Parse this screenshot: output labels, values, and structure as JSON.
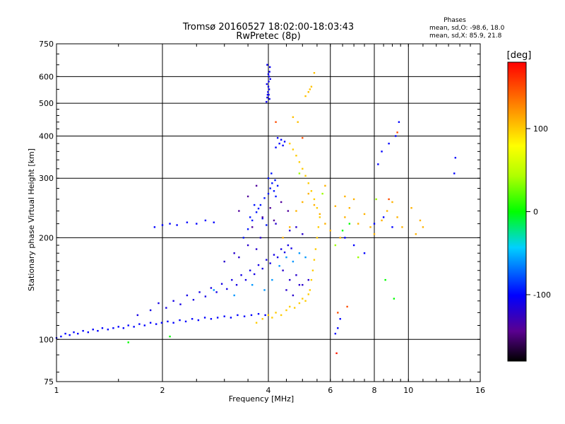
{
  "chart_data": {
    "type": "scatter",
    "title": "Tromsø 20160527 18:02:00-18:03:43",
    "subtitle": "RwPretec (8p)",
    "xlabel": "Frequency [MHz]",
    "ylabel": "Stationary phase Virtual Height [km]",
    "x_scale": "log",
    "y_scale": "log",
    "xlim": [
      1,
      16
    ],
    "ylim": [
      75,
      750
    ],
    "x_ticks": [
      1,
      2,
      4,
      6,
      8,
      10,
      16
    ],
    "x_tick_labels": [
      "1",
      "2",
      "4",
      "6",
      "8",
      "10",
      "16"
    ],
    "y_ticks": [
      75,
      100,
      200,
      300,
      400,
      500,
      600,
      750
    ],
    "y_tick_labels": [
      "75",
      "100",
      "200",
      "300",
      "400",
      "500",
      "600",
      "750"
    ],
    "grid": true,
    "stats": {
      "header": "Phases",
      "line_o": "mean, sd,O: -98.6, 18.0",
      "line_x": "mean, sd,X:  85.9, 21.8"
    },
    "colorbar": {
      "label": "[deg]",
      "range": [
        -180,
        180
      ],
      "ticks": [
        100,
        0,
        -100
      ],
      "tick_labels": [
        "100",
        "0",
        "-100"
      ]
    },
    "point_groups": [
      {
        "phase": -100,
        "points": [
          [
            1.0,
            101
          ],
          [
            1.03,
            102
          ],
          [
            1.06,
            104
          ],
          [
            1.09,
            103
          ],
          [
            1.12,
            105
          ],
          [
            1.15,
            104
          ],
          [
            1.19,
            106
          ],
          [
            1.23,
            105
          ],
          [
            1.27,
            107
          ],
          [
            1.31,
            106
          ],
          [
            1.35,
            108
          ],
          [
            1.4,
            107
          ],
          [
            1.45,
            108
          ],
          [
            1.5,
            109
          ],
          [
            1.55,
            108
          ],
          [
            1.6,
            110
          ],
          [
            1.66,
            109
          ],
          [
            1.72,
            111
          ],
          [
            1.78,
            110
          ],
          [
            1.85,
            112
          ],
          [
            1.92,
            111
          ],
          [
            1.99,
            112
          ],
          [
            2.07,
            113
          ],
          [
            2.15,
            112
          ],
          [
            2.24,
            114
          ],
          [
            2.33,
            113
          ],
          [
            2.43,
            115
          ],
          [
            2.53,
            114
          ],
          [
            2.64,
            116
          ],
          [
            2.75,
            115
          ],
          [
            2.87,
            116
          ],
          [
            3.0,
            117
          ],
          [
            3.13,
            116
          ],
          [
            3.27,
            118
          ],
          [
            3.42,
            117
          ],
          [
            3.58,
            118
          ],
          [
            3.75,
            119
          ],
          [
            3.92,
            118
          ]
        ]
      },
      {
        "phase": -110,
        "points": [
          [
            1.7,
            118
          ],
          [
            1.85,
            122
          ],
          [
            1.95,
            128
          ],
          [
            2.05,
            124
          ],
          [
            2.15,
            130
          ],
          [
            2.25,
            127
          ],
          [
            2.35,
            135
          ],
          [
            2.45,
            131
          ],
          [
            2.55,
            138
          ],
          [
            2.65,
            134
          ],
          [
            2.75,
            142
          ],
          [
            2.85,
            138
          ],
          [
            2.95,
            146
          ],
          [
            3.05,
            141
          ],
          [
            3.15,
            150
          ],
          [
            3.25,
            145
          ],
          [
            3.35,
            155
          ],
          [
            3.45,
            150
          ],
          [
            3.55,
            160
          ],
          [
            3.65,
            156
          ],
          [
            3.75,
            166
          ],
          [
            3.85,
            162
          ],
          [
            3.95,
            172
          ],
          [
            4.05,
            168
          ],
          [
            4.15,
            178
          ],
          [
            4.25,
            175
          ],
          [
            4.35,
            185
          ],
          [
            4.45,
            181
          ],
          [
            4.55,
            190
          ],
          [
            4.65,
            186
          ]
        ]
      },
      {
        "phase": -95,
        "points": [
          [
            3.4,
            200
          ],
          [
            3.5,
            212
          ],
          [
            3.6,
            225
          ],
          [
            3.7,
            238
          ],
          [
            3.8,
            250
          ],
          [
            3.9,
            262
          ],
          [
            4.0,
            270
          ],
          [
            4.05,
            280
          ],
          [
            4.1,
            290
          ],
          [
            4.15,
            275
          ],
          [
            4.2,
            265
          ],
          [
            4.25,
            285
          ],
          [
            4.0,
            300
          ],
          [
            4.08,
            310
          ],
          [
            4.18,
            296
          ],
          [
            3.55,
            230
          ],
          [
            3.65,
            250
          ],
          [
            3.75,
            244
          ],
          [
            3.85,
            228
          ],
          [
            3.95,
            218
          ]
        ]
      },
      {
        "phase": -105,
        "points": [
          [
            3.95,
            505
          ],
          [
            3.97,
            520
          ],
          [
            3.99,
            540
          ],
          [
            4.0,
            560
          ],
          [
            4.01,
            580
          ],
          [
            4.02,
            600
          ],
          [
            4.03,
            620
          ],
          [
            4.04,
            640
          ],
          [
            3.98,
            530
          ],
          [
            4.02,
            550
          ],
          [
            3.96,
            570
          ],
          [
            4.05,
            590
          ],
          [
            4.0,
            610
          ],
          [
            3.97,
            650
          ],
          [
            4.03,
            515
          ],
          [
            4.01,
            530
          ]
        ]
      },
      {
        "phase": -100,
        "points": [
          [
            4.2,
            370
          ],
          [
            4.3,
            380
          ],
          [
            4.35,
            390
          ],
          [
            4.4,
            375
          ],
          [
            4.25,
            395
          ],
          [
            4.45,
            385
          ]
        ]
      },
      {
        "phase": -100,
        "points": [
          [
            1.9,
            215
          ],
          [
            2.0,
            218
          ],
          [
            2.1,
            220
          ],
          [
            2.2,
            218
          ],
          [
            2.35,
            222
          ],
          [
            2.5,
            220
          ],
          [
            2.65,
            225
          ],
          [
            2.8,
            222
          ]
        ]
      },
      {
        "phase": -120,
        "points": [
          [
            3.0,
            170
          ],
          [
            3.2,
            180
          ],
          [
            3.3,
            175
          ],
          [
            3.5,
            190
          ],
          [
            3.7,
            185
          ],
          [
            3.8,
            200
          ],
          [
            4.2,
            220
          ],
          [
            4.6,
            210
          ],
          [
            4.8,
            215
          ],
          [
            5.0,
            205
          ],
          [
            4.4,
            160
          ],
          [
            4.6,
            150
          ],
          [
            4.8,
            155
          ],
          [
            5.0,
            145
          ],
          [
            5.2,
            150
          ],
          [
            4.5,
            140
          ],
          [
            4.7,
            135
          ],
          [
            4.9,
            145
          ]
        ]
      },
      {
        "phase": 100,
        "points": [
          [
            3.7,
            112
          ],
          [
            3.85,
            115
          ],
          [
            4.0,
            118
          ],
          [
            4.1,
            116
          ],
          [
            4.2,
            120
          ],
          [
            4.35,
            118
          ],
          [
            4.5,
            122
          ],
          [
            4.6,
            125
          ],
          [
            4.75,
            124
          ],
          [
            4.9,
            128
          ],
          [
            5.0,
            132
          ],
          [
            5.1,
            130
          ],
          [
            5.2,
            136
          ],
          [
            5.25,
            140
          ],
          [
            5.3,
            150
          ],
          [
            5.35,
            160
          ],
          [
            5.4,
            172
          ],
          [
            5.45,
            185
          ],
          [
            5.5,
            200
          ],
          [
            5.55,
            215
          ],
          [
            5.6,
            230
          ],
          [
            5.5,
            245
          ],
          [
            5.4,
            260
          ],
          [
            5.3,
            275
          ],
          [
            5.2,
            290
          ],
          [
            5.1,
            305
          ],
          [
            5.0,
            320
          ],
          [
            4.9,
            335
          ],
          [
            4.8,
            350
          ],
          [
            4.7,
            365
          ],
          [
            4.6,
            380
          ]
        ]
      },
      {
        "phase": 105,
        "points": [
          [
            5.2,
            540
          ],
          [
            5.25,
            550
          ],
          [
            5.3,
            560
          ],
          [
            5.1,
            525
          ],
          [
            5.4,
            615
          ],
          [
            4.85,
            440
          ],
          [
            4.7,
            455
          ]
        ]
      },
      {
        "phase": 110,
        "points": [
          [
            4.4,
            200
          ],
          [
            4.6,
            215
          ],
          [
            4.8,
            240
          ],
          [
            5.0,
            255
          ],
          [
            5.2,
            270
          ],
          [
            5.4,
            250
          ],
          [
            5.6,
            235
          ],
          [
            5.8,
            220
          ],
          [
            6.0,
            210
          ],
          [
            6.4,
            200
          ],
          [
            6.6,
            230
          ],
          [
            6.8,
            245
          ],
          [
            7.0,
            260
          ],
          [
            7.2,
            220
          ],
          [
            7.5,
            235
          ],
          [
            7.8,
            215
          ],
          [
            8.0,
            205
          ],
          [
            8.4,
            225
          ],
          [
            8.7,
            240
          ],
          [
            9.0,
            255
          ],
          [
            9.3,
            230
          ],
          [
            9.6,
            215
          ],
          [
            10.2,
            245
          ],
          [
            10.5,
            205
          ],
          [
            10.8,
            225
          ],
          [
            11.0,
            215
          ],
          [
            6.2,
            248
          ],
          [
            6.6,
            265
          ],
          [
            5.8,
            285
          ]
        ]
      },
      {
        "phase": 0,
        "points": [
          [
            1.6,
            98
          ],
          [
            2.1,
            102
          ],
          [
            8.6,
            150
          ],
          [
            9.1,
            132
          ],
          [
            6.5,
            210
          ],
          [
            6.8,
            220
          ]
        ]
      },
      {
        "phase": 40,
        "points": [
          [
            4.9,
            310
          ],
          [
            5.7,
            270
          ],
          [
            6.2,
            190
          ],
          [
            7.2,
            175
          ],
          [
            8.1,
            260
          ]
        ]
      },
      {
        "phase": -60,
        "points": [
          [
            4.1,
            150
          ],
          [
            4.3,
            165
          ],
          [
            4.5,
            175
          ],
          [
            4.7,
            170
          ],
          [
            4.9,
            180
          ],
          [
            5.1,
            175
          ],
          [
            3.9,
            140
          ],
          [
            3.6,
            145
          ],
          [
            3.2,
            135
          ],
          [
            2.8,
            140
          ]
        ]
      },
      {
        "phase": 150,
        "points": [
          [
            6.3,
            120
          ],
          [
            6.7,
            125
          ],
          [
            8.8,
            260
          ],
          [
            9.3,
            410
          ],
          [
            5.0,
            395
          ],
          [
            4.2,
            440
          ]
        ]
      },
      {
        "phase": -100,
        "points": [
          [
            6.2,
            104
          ],
          [
            6.3,
            108
          ],
          [
            6.4,
            115
          ],
          [
            6.6,
            200
          ],
          [
            7.0,
            190
          ],
          [
            7.5,
            180
          ],
          [
            8.0,
            220
          ],
          [
            8.2,
            330
          ],
          [
            8.4,
            360
          ],
          [
            8.8,
            380
          ],
          [
            9.2,
            400
          ],
          [
            9.4,
            440
          ],
          [
            13.5,
            310
          ],
          [
            13.6,
            345
          ],
          [
            9.0,
            215
          ],
          [
            8.5,
            230
          ]
        ]
      },
      {
        "phase": -140,
        "points": [
          [
            3.3,
            240
          ],
          [
            3.5,
            265
          ],
          [
            3.7,
            285
          ],
          [
            3.6,
            215
          ],
          [
            3.85,
            230
          ],
          [
            4.15,
            225
          ],
          [
            4.05,
            245
          ],
          [
            4.35,
            255
          ],
          [
            4.55,
            240
          ]
        ]
      },
      {
        "phase": 170,
        "points": [
          [
            6.25,
            91
          ]
        ]
      }
    ]
  }
}
